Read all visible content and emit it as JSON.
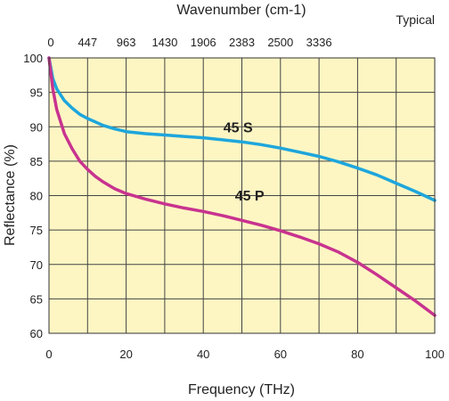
{
  "chart_data": {
    "type": "line",
    "xlabel": "Frequency (THz)",
    "ylabel": "Reflectance (%)",
    "top_axis_label": "Wavenumber (cm-1)",
    "top_axis_note": "Typical",
    "xlim": [
      0,
      100
    ],
    "ylim": [
      60,
      100
    ],
    "x_ticks": [
      0,
      20,
      40,
      60,
      80,
      100
    ],
    "y_ticks": [
      60,
      65,
      70,
      75,
      80,
      85,
      90,
      95,
      100
    ],
    "top_ticks": [
      "0",
      "447",
      "963",
      "1430",
      "1906",
      "2383",
      "2500",
      "3336"
    ],
    "grid": true,
    "background": "#fdf6c3",
    "series": [
      {
        "name": "45 S",
        "color": "#1ea6dc",
        "x": [
          0,
          1,
          2,
          4,
          6,
          8,
          10,
          12,
          14,
          17,
          20,
          25,
          30,
          35,
          40,
          45,
          50,
          55,
          60,
          65,
          70,
          75,
          80,
          85,
          90,
          95,
          100
        ],
        "y": [
          100,
          97,
          95.5,
          93.8,
          92.7,
          91.8,
          91.2,
          90.7,
          90.2,
          89.7,
          89.3,
          89.0,
          88.8,
          88.6,
          88.4,
          88.1,
          87.8,
          87.4,
          86.9,
          86.3,
          85.7,
          84.9,
          84.0,
          83.0,
          81.8,
          80.6,
          79.3
        ]
      },
      {
        "name": "45 P",
        "color": "#c8338f",
        "x": [
          0,
          1,
          2,
          4,
          6,
          8,
          10,
          12,
          14,
          17,
          20,
          25,
          30,
          35,
          40,
          45,
          50,
          55,
          60,
          65,
          70,
          75,
          80,
          85,
          90,
          95,
          100
        ],
        "y": [
          100,
          95.5,
          92.5,
          89.0,
          86.8,
          85.0,
          83.8,
          82.8,
          82.0,
          81.0,
          80.3,
          79.5,
          78.8,
          78.2,
          77.7,
          77.1,
          76.4,
          75.7,
          74.9,
          74.0,
          73.0,
          71.8,
          70.3,
          68.5,
          66.6,
          64.7,
          62.6
        ]
      }
    ]
  }
}
